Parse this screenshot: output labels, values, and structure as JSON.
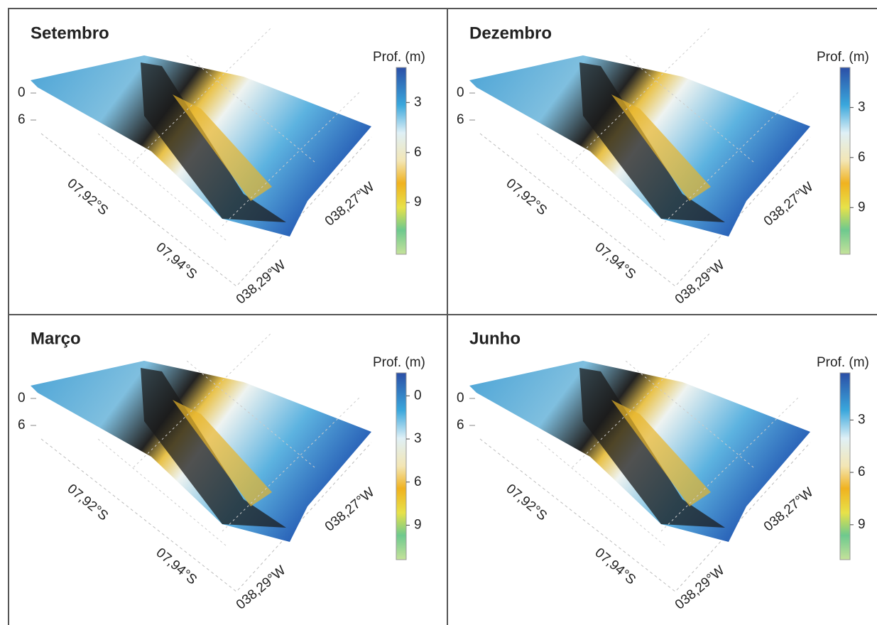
{
  "chart_data": [
    {
      "type": "surface",
      "title": "Setembro",
      "colorbar_label": "Prof. (m)",
      "clim": [
        0.9,
        12.1
      ],
      "cticks": [
        3,
        6,
        9
      ],
      "zticks": [
        0,
        6
      ],
      "xticks": [
        {
          "value": -7.92,
          "label": "07,92°S"
        },
        {
          "value": -7.94,
          "label": "07,94°S"
        }
      ],
      "yticks": [
        {
          "value": -38.29,
          "label": "038,29°W"
        },
        {
          "value": -38.27,
          "label": "038,27°W"
        }
      ]
    },
    {
      "type": "surface",
      "title": "Dezembro",
      "colorbar_label": "Prof. (m)",
      "clim": [
        0.6,
        11.8
      ],
      "cticks": [
        3,
        6,
        9
      ],
      "zticks": [
        0,
        6
      ],
      "xticks": [
        {
          "value": -7.92,
          "label": "07,92°S"
        },
        {
          "value": -7.94,
          "label": "07,94°S"
        }
      ],
      "yticks": [
        {
          "value": -38.29,
          "label": "038,29°W"
        },
        {
          "value": -38.27,
          "label": "038,27°W"
        }
      ]
    },
    {
      "type": "surface",
      "title": "Março",
      "colorbar_label": "Prof. (m)",
      "clim": [
        -1.6,
        11.4
      ],
      "cticks": [
        0,
        3,
        6,
        9
      ],
      "zticks": [
        0,
        6
      ],
      "xticks": [
        {
          "value": -7.92,
          "label": "07,92°S"
        },
        {
          "value": -7.94,
          "label": "07,94°S"
        }
      ],
      "yticks": [
        {
          "value": -38.29,
          "label": "038,29°W"
        },
        {
          "value": -38.27,
          "label": "038,27°W"
        }
      ]
    },
    {
      "type": "surface",
      "title": "Junho",
      "colorbar_label": "Prof. (m)",
      "clim": [
        0.3,
        11.0
      ],
      "cticks": [
        3,
        6,
        9
      ],
      "zticks": [
        0,
        6
      ],
      "xticks": [
        {
          "value": -7.92,
          "label": "07,92°S"
        },
        {
          "value": -7.94,
          "label": "07,94°S"
        }
      ],
      "yticks": [
        {
          "value": -38.29,
          "label": "038,29°W"
        },
        {
          "value": -38.27,
          "label": "038,27°W"
        }
      ]
    }
  ]
}
